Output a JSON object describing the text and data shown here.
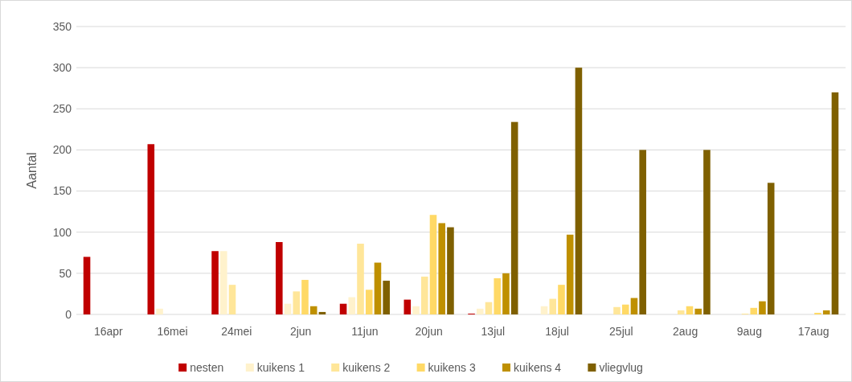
{
  "chart_data": {
    "type": "bar",
    "ylabel": "Aantal",
    "categories": [
      "16apr",
      "16mei",
      "24mei",
      "2jun",
      "11jun",
      "20jun",
      "13jul",
      "18jul",
      "25jul",
      "2aug",
      "9aug",
      "17aug"
    ],
    "series": [
      {
        "name": "nesten",
        "color": "#c00000",
        "values": [
          70,
          207,
          77,
          88,
          13,
          18,
          1,
          0,
          0,
          0,
          0,
          0
        ]
      },
      {
        "name": "kuikens 1",
        "color": "#fff2cc",
        "values": [
          0,
          7,
          77,
          13,
          21,
          10,
          7,
          10,
          0,
          0,
          0,
          0
        ]
      },
      {
        "name": "kuikens 2",
        "color": "#ffe699",
        "values": [
          0,
          0,
          36,
          28,
          86,
          46,
          15,
          19,
          9,
          5,
          1,
          0
        ]
      },
      {
        "name": "kuikens 3",
        "color": "#ffd966",
        "values": [
          0,
          0,
          0,
          42,
          30,
          121,
          44,
          36,
          12,
          10,
          8,
          2
        ]
      },
      {
        "name": "kuikens 4",
        "color": "#bf9000",
        "values": [
          0,
          0,
          0,
          10,
          63,
          111,
          50,
          97,
          20,
          7,
          16,
          5
        ]
      },
      {
        "name": "vliegvlug",
        "color": "#7f6000",
        "values": [
          0,
          0,
          0,
          3,
          41,
          106,
          234,
          300,
          200,
          200,
          160,
          270
        ]
      }
    ],
    "ylim": [
      0,
      350
    ],
    "yticks": [
      0,
      50,
      100,
      150,
      200,
      250,
      300,
      350
    ],
    "grid": "y",
    "legend": "bottom"
  }
}
